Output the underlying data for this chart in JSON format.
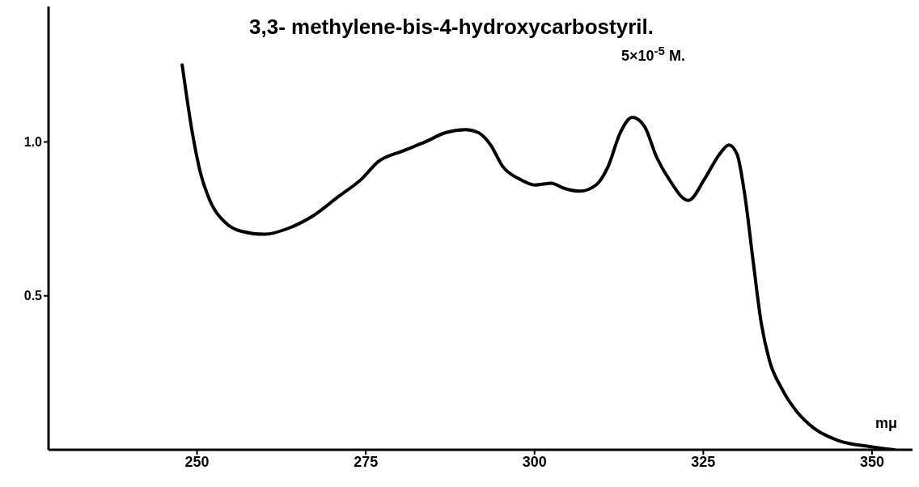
{
  "chart_data": {
    "type": "line",
    "title": "3,3- methylene-bis-4-hydroxycarbostyril.",
    "subtitle": "5×10$^{-5}$ M.",
    "xlabel": "mμ",
    "x": [
      247.8,
      249.3,
      250.5,
      251.9,
      254.1,
      256.5,
      260,
      263.6,
      267.2,
      270.8,
      274.4,
      276.8,
      280.4,
      283.8,
      286.8,
      289.8,
      291.7,
      293.5,
      295.3,
      297.7,
      300.1,
      302.5,
      304.3,
      306.7,
      309.1,
      310.9,
      312.7,
      314.5,
      316.3,
      318.1,
      319.9,
      322.8,
      325.2,
      327.4,
      328.8,
      330,
      331.2,
      332.4,
      333.6,
      334.8,
      336.6,
      339,
      341.4,
      345,
      349.8,
      353.3
    ],
    "series": [
      {
        "color": "#000000",
        "values": [
          1.25,
          1.03,
          0.9,
          0.81,
          0.74,
          0.71,
          0.7,
          0.72,
          0.76,
          0.82,
          0.88,
          0.935,
          0.97,
          1.0,
          1.03,
          1.04,
          1.03,
          0.99,
          0.92,
          0.88,
          0.86,
          0.866,
          0.85,
          0.84,
          0.86,
          0.92,
          1.03,
          1.08,
          1.05,
          0.95,
          0.88,
          0.81,
          0.88,
          0.96,
          0.99,
          0.96,
          0.82,
          0.61,
          0.41,
          0.29,
          0.2,
          0.12,
          0.07,
          0.03,
          0.01,
          0
        ]
      }
    ],
    "xlim": [
      228,
      356
    ],
    "xticks": [
      250,
      275,
      300,
      325,
      350
    ],
    "ylim": [
      0,
      1.44
    ],
    "yticks": [
      {
        "value": 0.5,
        "label": "0.5"
      },
      {
        "value": 1,
        "label": "1.0"
      }
    ],
    "grid": false,
    "marker": "none",
    "line_style": "solid"
  }
}
